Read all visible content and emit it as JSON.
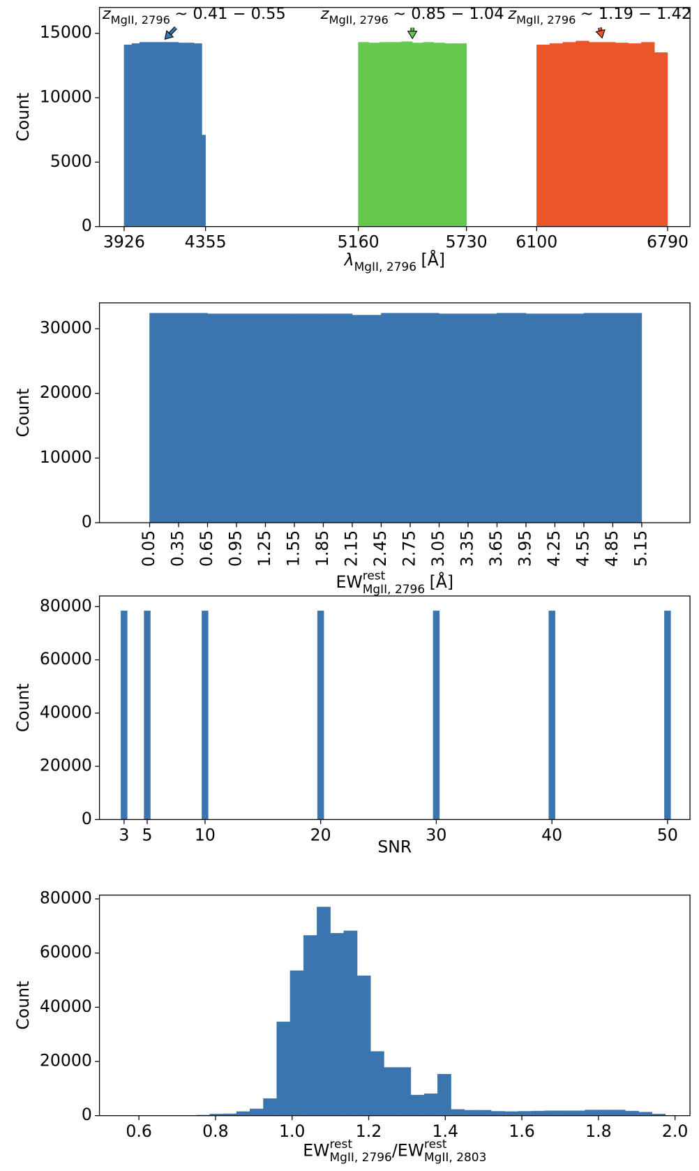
{
  "chart_data": [
    {
      "type": "histogram",
      "ylabel": "Count",
      "xlabel": [
        {
          "text": "λ",
          "role": "base"
        },
        {
          "text": "MgII, 2796",
          "role": "sub"
        },
        {
          "text": "[Å]",
          "role": "base"
        }
      ],
      "xlim": [
        3796,
        6908
      ],
      "ylim": [
        0,
        17000
      ],
      "xticks": [
        3926,
        4355,
        5160,
        5730,
        6100,
        6790
      ],
      "yticks": [
        0,
        5000,
        10000,
        15000
      ],
      "series": [
        {
          "color": "#3b75af",
          "bins": [
            3926,
            3967,
            4008,
            4049,
            4090,
            4131,
            4172,
            4213,
            4254,
            4295,
            4336,
            4355
          ],
          "values": [
            14100,
            14200,
            14300,
            14300,
            14300,
            14300,
            14300,
            14250,
            14250,
            14200,
            7100
          ],
          "annotation": [
            {
              "text": "z",
              "role": "base"
            },
            {
              "text": "MgII, 2796",
              "role": "sub"
            },
            {
              "text": "~ 0.41 − 0.55",
              "role": "base"
            }
          ]
        },
        {
          "color": "#66c94f",
          "bins": [
            5160,
            5217,
            5274,
            5331,
            5388,
            5445,
            5502,
            5559,
            5616,
            5673,
            5730
          ],
          "values": [
            14300,
            14250,
            14300,
            14300,
            14350,
            14250,
            14300,
            14250,
            14200,
            14200
          ],
          "annotation": [
            {
              "text": "z",
              "role": "base"
            },
            {
              "text": "MgII, 2796",
              "role": "sub"
            },
            {
              "text": "~ 0.85 − 1.04",
              "role": "base"
            }
          ]
        },
        {
          "color": "#ea5529",
          "bins": [
            6100,
            6169,
            6238,
            6307,
            6376,
            6445,
            6514,
            6583,
            6652,
            6721,
            6790
          ],
          "values": [
            14100,
            14200,
            14300,
            14400,
            14300,
            14300,
            14250,
            14200,
            14300,
            13500
          ],
          "annotation": [
            {
              "text": "z",
              "role": "base"
            },
            {
              "text": "MgII, 2796",
              "role": "sub"
            },
            {
              "text": "~ 1.19 − 1.42",
              "role": "base"
            }
          ]
        }
      ]
    },
    {
      "type": "histogram",
      "ylabel": "Count",
      "xlabel": [
        {
          "text": "EW",
          "role": "base"
        },
        {
          "text": "rest",
          "role": "sup"
        },
        {
          "text": "MgII, 2796",
          "role": "sub"
        },
        {
          "text": "[Å]",
          "role": "base"
        }
      ],
      "xlim": [
        -0.47,
        5.65
      ],
      "ylim": [
        0,
        34000
      ],
      "xticks": [
        0.05,
        0.35,
        0.65,
        0.95,
        1.25,
        1.55,
        1.85,
        2.15,
        2.45,
        2.75,
        3.05,
        3.35,
        3.65,
        3.95,
        4.25,
        4.55,
        4.85,
        5.15
      ],
      "xtick_rotation": 90,
      "yticks": [
        0,
        10000,
        20000,
        30000
      ],
      "series": [
        {
          "color": "#3b75af",
          "bins": [
            0.05,
            0.35,
            0.65,
            0.95,
            1.25,
            1.55,
            1.85,
            2.15,
            2.45,
            2.75,
            3.05,
            3.35,
            3.65,
            3.95,
            4.25,
            4.55,
            4.85,
            5.15
          ],
          "values": [
            32400,
            32400,
            32300,
            32300,
            32300,
            32300,
            32300,
            32100,
            32400,
            32400,
            32300,
            32300,
            32400,
            32300,
            32300,
            32400,
            32400
          ]
        }
      ]
    },
    {
      "type": "histogram",
      "ylabel": "Count",
      "xlabel": [
        {
          "text": "SNR",
          "role": "base"
        }
      ],
      "xlim": [
        0.87,
        51.94
      ],
      "ylim": [
        0,
        84000
      ],
      "xticks": [
        3,
        5,
        10,
        20,
        30,
        40,
        50
      ],
      "yticks": [
        0,
        20000,
        40000,
        60000,
        80000
      ],
      "series": [
        {
          "color": "#3b75af",
          "bins": [
            2.73,
            3.27,
            4.73,
            5.27,
            9.73,
            10.27,
            19.73,
            20.27,
            29.73,
            30.27,
            39.73,
            40.27,
            49.73,
            50.27
          ],
          "values": [
            78400,
            0,
            78400,
            0,
            78400,
            0,
            78400,
            0,
            78400,
            0,
            78400,
            0,
            78400
          ]
        }
      ]
    },
    {
      "type": "histogram",
      "ylabel": "Count",
      "xlabel": [
        {
          "text": "EW",
          "role": "base"
        },
        {
          "text": "rest",
          "role": "sup"
        },
        {
          "text": "MgII, 2796",
          "role": "sub"
        },
        {
          "text": "/",
          "role": "base"
        },
        {
          "text": "EW",
          "role": "base"
        },
        {
          "text": "rest",
          "role": "sup"
        },
        {
          "text": "MgII, 2803",
          "role": "sub"
        }
      ],
      "xlim": [
        0.497,
        2.039
      ],
      "ylim": [
        0,
        81400
      ],
      "xticks": [
        0.6,
        0.8,
        {
          "value": 1,
          "label": "1.0"
        },
        1.2,
        1.4,
        1.6,
        1.8,
        {
          "value": 2,
          "label": "2.0"
        }
      ],
      "yticks": [
        0,
        20000,
        40000,
        60000,
        80000
      ],
      "series": [
        {
          "color": "#3b75af",
          "bins": [
            0.75,
            0.785,
            0.82,
            0.855,
            0.89,
            0.925,
            0.96,
            0.995,
            1.03,
            1.065,
            1.1,
            1.135,
            1.17,
            1.205,
            1.24,
            1.275,
            1.31,
            1.345,
            1.38,
            1.415,
            1.45,
            1.485,
            1.52,
            1.555,
            1.59,
            1.625,
            1.66,
            1.695,
            1.73,
            1.765,
            1.8,
            1.835,
            1.87,
            1.905,
            1.94,
            1.975
          ],
          "values": [
            200,
            600,
            700,
            1500,
            2500,
            6300,
            34600,
            53500,
            66500,
            77000,
            67300,
            68200,
            51600,
            23700,
            17800,
            17800,
            7600,
            8100,
            15300,
            2300,
            2000,
            2000,
            1600,
            1500,
            1600,
            1700,
            1800,
            1800,
            1800,
            2100,
            2100,
            2100,
            1700,
            1300,
            600
          ]
        }
      ]
    }
  ]
}
